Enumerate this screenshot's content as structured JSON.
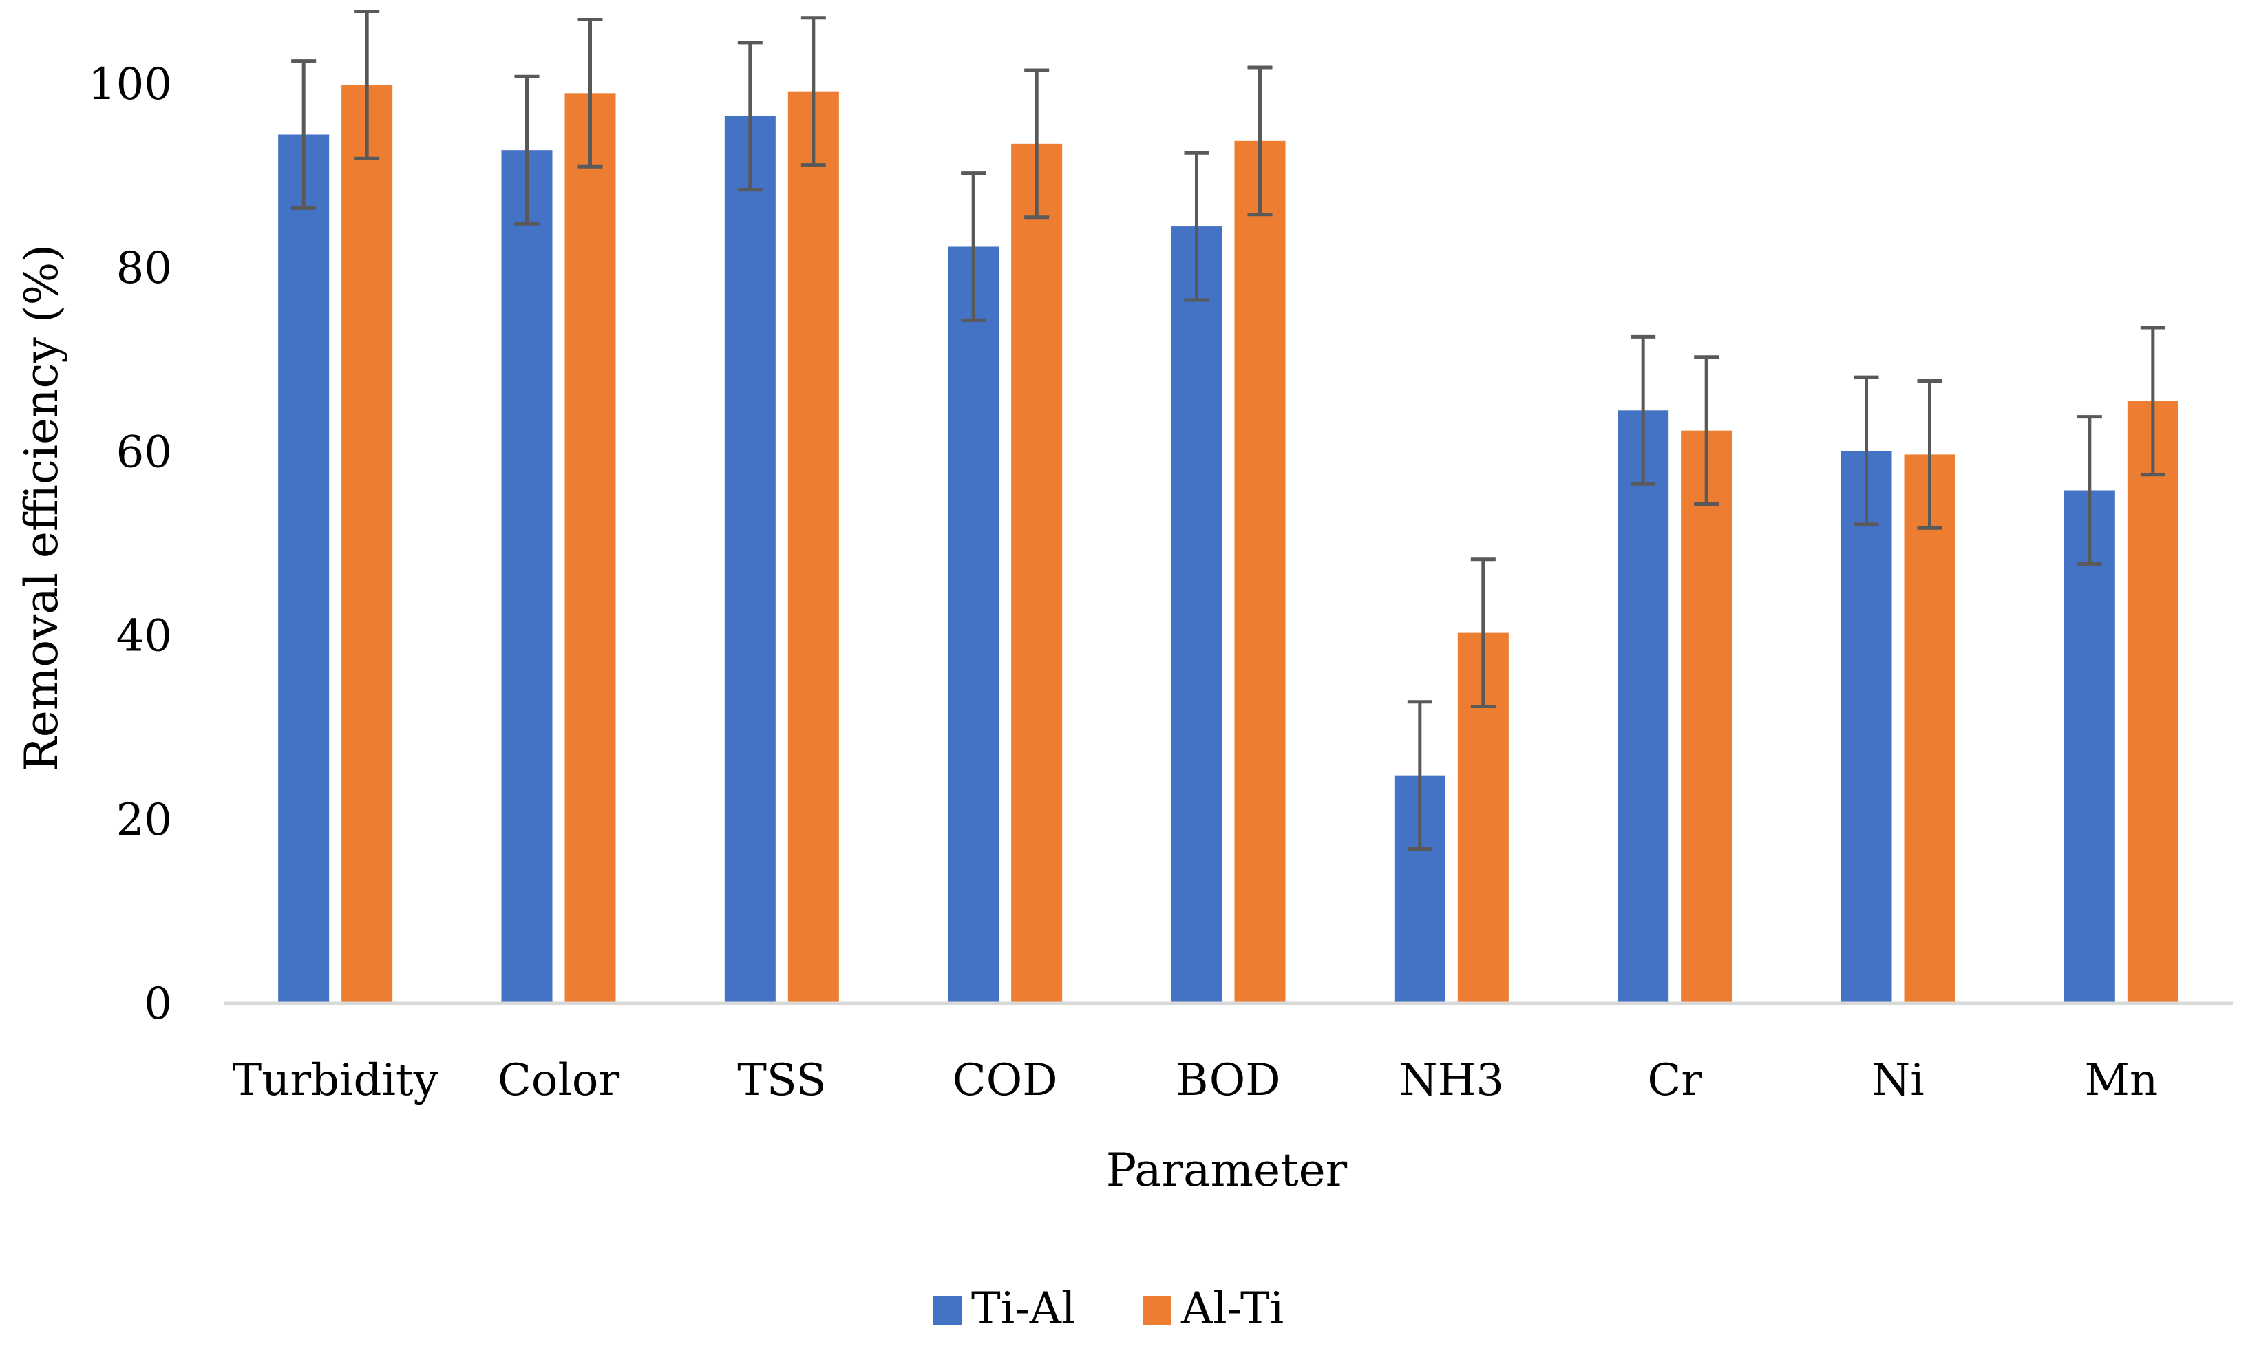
{
  "chart_data": {
    "type": "bar",
    "title": "",
    "xlabel": "Parameter",
    "ylabel": "Removal efficiency (%)",
    "ylim": [
      0,
      100
    ],
    "yticks": [
      0,
      20,
      40,
      60,
      80,
      100
    ],
    "gridlines": false,
    "legend_position": "bottom-center",
    "categories": [
      "Turbidity",
      "Color",
      "TSS",
      "COD",
      "BOD",
      "NH3",
      "Cr",
      "Ni",
      "Mn"
    ],
    "error_bar": 8,
    "series": [
      {
        "name": "Ti-Al",
        "color": "#4472C4",
        "values": [
          94.5,
          92.8,
          96.5,
          82.3,
          84.5,
          24.8,
          64.5,
          60.1,
          55.8
        ]
      },
      {
        "name": "Al-Ti",
        "color": "#ED7D31",
        "values": [
          99.9,
          99.0,
          99.2,
          93.5,
          93.8,
          40.3,
          62.3,
          59.7,
          65.5
        ]
      }
    ],
    "axis_color": "#D9D9D9",
    "error_bar_color": "#595959"
  }
}
